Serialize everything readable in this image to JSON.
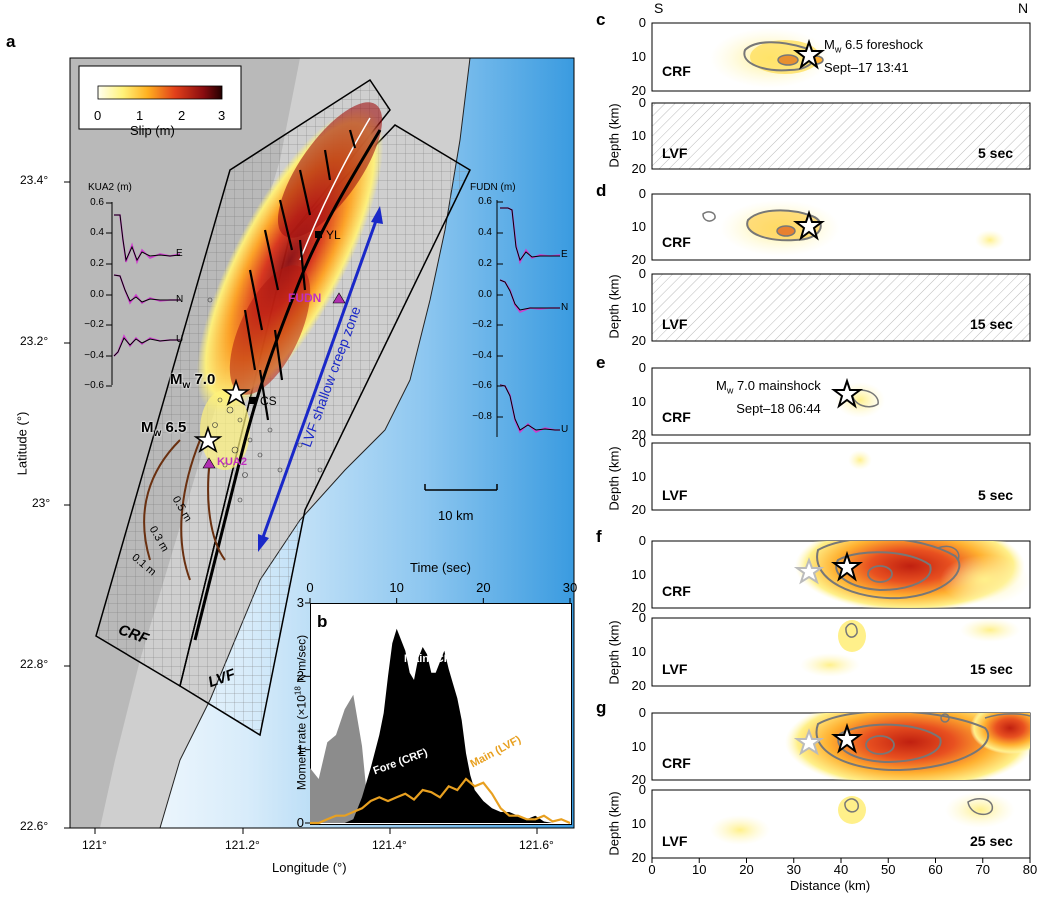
{
  "panel_letters": {
    "a": "a",
    "b": "b",
    "c": "c",
    "d": "d",
    "e": "e",
    "f": "f",
    "g": "g"
  },
  "map": {
    "colorbar": {
      "ticks": [
        "0",
        "1",
        "2",
        "3"
      ],
      "label": "Slip (m)",
      "colors": [
        "#fffff0",
        "#fff27a",
        "#ffb020",
        "#e2401a",
        "#8a0c10",
        "#220000"
      ]
    },
    "lat_ticks": [
      "23.4°",
      "23.2°",
      "23°",
      "22.8°",
      "22.6°"
    ],
    "lon_ticks": [
      "121°",
      "121.2°",
      "121.4°",
      "121.6°"
    ],
    "xlabel": "Longitude (°)",
    "ylabel": "Latitude (°)",
    "labels": {
      "yl": "YL",
      "cs": "CS",
      "fudn": "FUDN",
      "kua2": "KUA2",
      "mw70": "7.0",
      "mw65": "6.5",
      "mw_prefix": "M",
      "mw_sub": "w",
      "creep": "LVF shallow creep zone",
      "crf": "CRF",
      "lvf": "LVF",
      "scale": "10 km",
      "c05": "0.5 m",
      "c03": "0.3 m",
      "c01": "0.1 m"
    },
    "kua2_inset": {
      "title": "KUA2 (m)",
      "ticks": [
        "0.6",
        "0.4",
        "0.2",
        "0.0",
        "−0.2",
        "−0.4",
        "−0.6"
      ],
      "comps": [
        "E",
        "N",
        "U"
      ]
    },
    "fudn_inset": {
      "title": "FUDN (m)",
      "ticks": [
        "0.6",
        "0.4",
        "0.2",
        "0.0",
        "−0.2",
        "−0.4",
        "−0.6",
        "−0.8"
      ],
      "comps": [
        "E",
        "N",
        "U"
      ]
    }
  },
  "chart_data": {
    "type": "area",
    "xlabel": "Time (sec)",
    "ylabel_main": "Moment rate (×10",
    "ylabel_sup": "18",
    "ylabel_tail": " N m/sec)",
    "xlim": [
      0,
      30
    ],
    "ylim": [
      0,
      3
    ],
    "xticks": [
      "0",
      "10",
      "20",
      "30"
    ],
    "yticks": [
      "0",
      "1",
      "2",
      "3"
    ],
    "series": [
      {
        "name": "Main (CRF)",
        "color": "#000000",
        "x": [
          0,
          1,
          2,
          3,
          4,
          5,
          6,
          7,
          8,
          8.5,
          9,
          9.5,
          10,
          10.5,
          11,
          11.5,
          12,
          12.5,
          13,
          13.5,
          14,
          14.5,
          15,
          15.5,
          16,
          16.5,
          17,
          17.5,
          18,
          18.5,
          19,
          20,
          21,
          22,
          23,
          24,
          25,
          26,
          27,
          28,
          29
        ],
        "values": [
          0,
          0,
          0,
          0,
          0,
          0.05,
          0.35,
          0.75,
          1.2,
          1.5,
          2.0,
          2.45,
          2.65,
          2.5,
          2.35,
          2.05,
          1.95,
          2.25,
          2.4,
          2.3,
          2.05,
          2.05,
          2.2,
          2.35,
          2.1,
          1.9,
          1.7,
          1.4,
          0.95,
          0.65,
          0.45,
          0.3,
          0.2,
          0.15,
          0.15,
          0.1,
          0.05,
          0.1,
          0.02,
          0,
          0
        ]
      },
      {
        "name": "Fore (CRF)",
        "color": "#8c8c8c",
        "x": [
          0,
          1,
          2,
          3,
          4,
          5,
          6,
          6.5,
          7,
          8,
          9,
          10,
          11,
          12,
          13,
          14,
          15,
          16,
          17,
          18,
          19,
          20
        ],
        "values": [
          0.75,
          0.6,
          1.1,
          1.2,
          1.55,
          1.75,
          1.05,
          0.45,
          0.7,
          1.0,
          0.85,
          0.55,
          0.7,
          0.4,
          0.5,
          0.35,
          0.4,
          0.3,
          0.2,
          0.1,
          0.05,
          0
        ]
      },
      {
        "name": "Main (LVF)",
        "color": "#e8a020",
        "x": [
          0,
          1,
          2,
          3,
          4,
          5,
          6,
          7,
          8,
          9,
          10,
          11,
          12,
          13,
          14,
          15,
          16,
          17,
          18,
          19,
          20,
          21,
          22,
          23,
          24,
          25,
          26,
          27,
          28,
          29,
          30
        ],
        "values": [
          0,
          0,
          0.05,
          0.1,
          0.1,
          0.15,
          0.2,
          0.3,
          0.35,
          0.3,
          0.35,
          0.4,
          0.32,
          0.45,
          0.42,
          0.35,
          0.5,
          0.45,
          0.6,
          0.5,
          0.55,
          0.4,
          0.2,
          0.1,
          0.1,
          0.05,
          0.05,
          0.1,
          0.02,
          0.05,
          0
        ]
      }
    ],
    "legend_labels": [
      "Main (CRF)",
      "Fore (CRF)",
      "Main (LVF)"
    ]
  },
  "sections": {
    "compass": {
      "s": "S",
      "n": "N"
    },
    "crf": "CRF",
    "lvf": "LVF",
    "depth_label": "Depth (km)",
    "depth_ticks": [
      "0",
      "10",
      "20"
    ],
    "dist_ticks": [
      "0",
      "10",
      "20",
      "30",
      "40",
      "50",
      "60",
      "70",
      "80"
    ],
    "xlabel": "Distance (km)",
    "times": {
      "c": "5 sec",
      "d": "15 sec",
      "e": "5 sec",
      "f": "15 sec",
      "g": "25 sec"
    },
    "foreshock": {
      "mw": "M",
      "sub": "w",
      "text": " 6.5 foreshock",
      "date": "Sept–17 13:41"
    },
    "mainshock": {
      "mw": "M",
      "sub": "w",
      "text": " 7.0 mainshock",
      "date": "Sept–18 06:44"
    }
  }
}
